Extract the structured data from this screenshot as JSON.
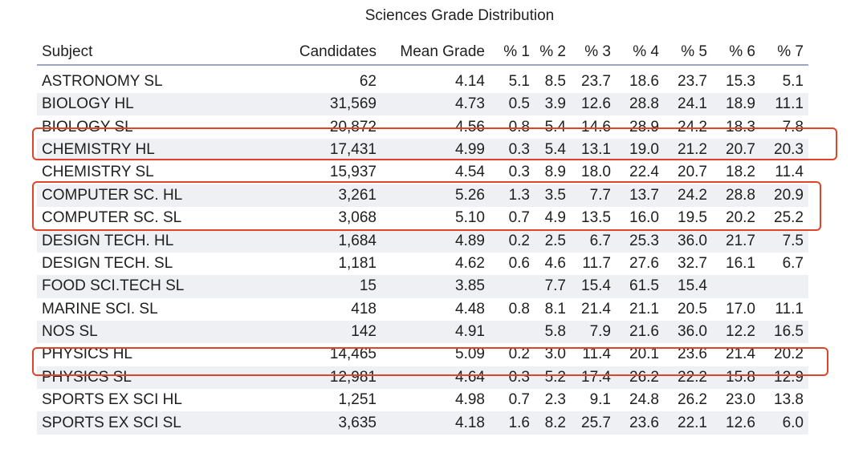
{
  "title": "Sciences Grade Distribution",
  "headers": [
    "Subject",
    "Candidates",
    "Mean Grade",
    "% 1",
    "% 2",
    "% 3",
    "% 4",
    "% 5",
    "% 6",
    "% 7"
  ],
  "highlight_color": "#e0442a",
  "highlighted_rows": [
    "CHEMISTRY HL",
    "COMPUTER SC. HL",
    "COMPUTER SC. SL",
    "PHYSICS HL"
  ],
  "rows": [
    [
      "ASTRONOMY SL",
      "62",
      "4.14",
      "5.1",
      "8.5",
      "23.7",
      "18.6",
      "23.7",
      "15.3",
      "5.1"
    ],
    [
      "BIOLOGY HL",
      "31,569",
      "4.73",
      "0.5",
      "3.9",
      "12.6",
      "28.8",
      "24.1",
      "18.9",
      "11.1"
    ],
    [
      "BIOLOGY SL",
      "20,872",
      "4.56",
      "0.8",
      "5.4",
      "14.6",
      "28.9",
      "24.2",
      "18.3",
      "7.8"
    ],
    [
      "CHEMISTRY HL",
      "17,431",
      "4.99",
      "0.3",
      "5.4",
      "13.1",
      "19.0",
      "21.2",
      "20.7",
      "20.3"
    ],
    [
      "CHEMISTRY SL",
      "15,937",
      "4.54",
      "0.3",
      "8.9",
      "18.0",
      "22.4",
      "20.7",
      "18.2",
      "11.4"
    ],
    [
      "COMPUTER SC. HL",
      "3,261",
      "5.26",
      "1.3",
      "3.5",
      "7.7",
      "13.7",
      "24.2",
      "28.8",
      "20.9"
    ],
    [
      "COMPUTER SC. SL",
      "3,068",
      "5.10",
      "0.7",
      "4.9",
      "13.5",
      "16.0",
      "19.5",
      "20.2",
      "25.2"
    ],
    [
      "DESIGN TECH. HL",
      "1,684",
      "4.89",
      "0.2",
      "2.5",
      "6.7",
      "25.3",
      "36.0",
      "21.7",
      "7.5"
    ],
    [
      "DESIGN TECH. SL",
      "1,181",
      "4.62",
      "0.6",
      "4.6",
      "11.7",
      "27.6",
      "32.7",
      "16.1",
      "6.7"
    ],
    [
      "FOOD SCI.TECH SL",
      "15",
      "3.85",
      "",
      "7.7",
      "15.4",
      "61.5",
      "15.4",
      "",
      ""
    ],
    [
      "MARINE SCI. SL",
      "418",
      "4.48",
      "0.8",
      "8.1",
      "21.4",
      "21.1",
      "20.5",
      "17.0",
      "11.1"
    ],
    [
      "NOS SL",
      "142",
      "4.91",
      "",
      "5.8",
      "7.9",
      "21.6",
      "36.0",
      "12.2",
      "16.5"
    ],
    [
      "PHYSICS HL",
      "14,465",
      "5.09",
      "0.2",
      "3.0",
      "11.4",
      "20.1",
      "23.6",
      "21.4",
      "20.2"
    ],
    [
      "PHYSICS SL",
      "12,981",
      "4.64",
      "0.3",
      "5.2",
      "17.4",
      "26.2",
      "22.2",
      "15.8",
      "12.9"
    ],
    [
      "SPORTS EX SCI HL",
      "1,251",
      "4.98",
      "0.7",
      "2.3",
      "9.1",
      "24.8",
      "26.2",
      "23.0",
      "13.8"
    ],
    [
      "SPORTS EX SCI SL",
      "3,635",
      "4.18",
      "1.6",
      "8.2",
      "25.7",
      "23.6",
      "22.1",
      "12.6",
      "6.0"
    ]
  ]
}
